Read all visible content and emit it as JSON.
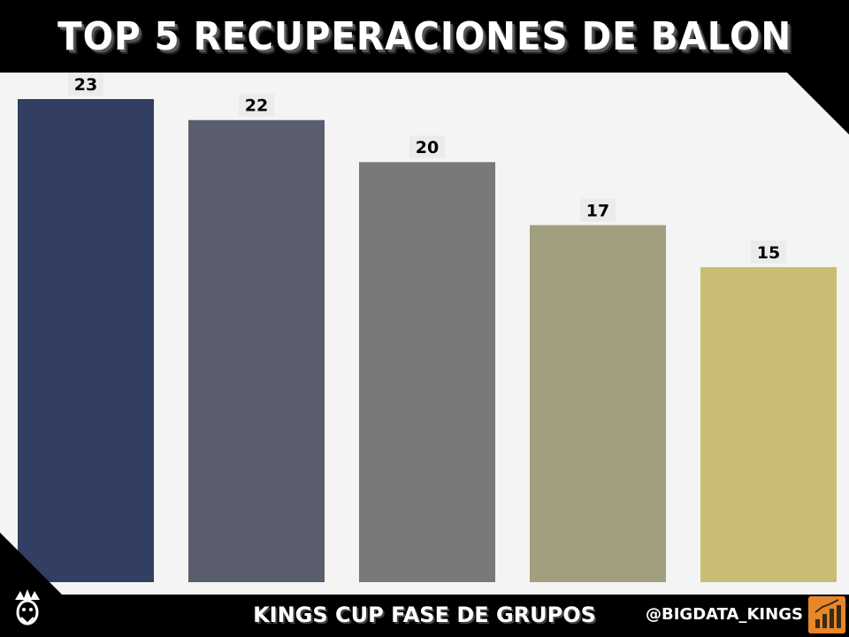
{
  "header": {
    "title": "TOP 5 RECUPERACIONES DE BALON"
  },
  "footer": {
    "title": "KINGS CUP FASE DE GRUPOS",
    "handle": "@BIGDATA_KINGS"
  },
  "colors": {
    "background": "#000000",
    "panel": "#f4f4f4",
    "bars": [
      "#323e62",
      "#595d6c",
      "#797979",
      "#a29f7e",
      "#c9bd73"
    ]
  },
  "chart_data": {
    "type": "bar",
    "title": "TOP 5 RECUPERACIONES DE BALON",
    "categories": [
      "",
      "",
      "",
      "",
      ""
    ],
    "values": [
      23,
      22,
      20,
      17,
      15
    ],
    "xlabel": "",
    "ylabel": "",
    "ylim": [
      0,
      23
    ],
    "grid": false,
    "legend": "none",
    "data_labels": true
  }
}
